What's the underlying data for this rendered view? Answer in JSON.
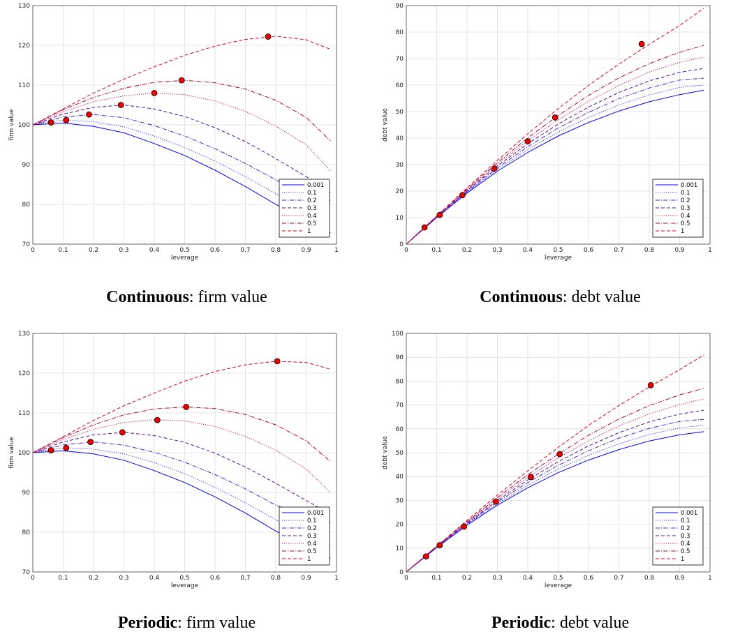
{
  "colors": {
    "curves": [
      "#0000ff",
      "#3333ee",
      "#4422cc",
      "#551199",
      "#bb1155",
      "#aa0033",
      "#dd0022"
    ],
    "marker_fill": "#ee0000",
    "grid": "#dddddd"
  },
  "chart_data": [
    {
      "type": "line",
      "caption_bold": "Continuous",
      "caption_rest": ": firm value",
      "xlabel": "leverage",
      "ylabel": "firm value",
      "xlim": [
        0,
        1
      ],
      "ylim": [
        70,
        130
      ],
      "xticks": [
        "0",
        "0.1",
        "0.2",
        "0.3",
        "0.4",
        "0.5",
        "0.6",
        "0.7",
        "0.8",
        "0.9",
        "1"
      ],
      "yticks": [
        "70",
        "80",
        "90",
        "100",
        "110",
        "120",
        "130"
      ],
      "grid": true,
      "legend_position": "bottom-right",
      "series": [
        {
          "name": "0.001",
          "x": [
            0,
            0.1,
            0.2,
            0.3,
            0.4,
            0.5,
            0.6,
            0.7,
            0.8,
            0.9,
            0.98
          ],
          "y": [
            100,
            100.5,
            99.6,
            98.0,
            95.3,
            92.3,
            88.6,
            84.5,
            80.0,
            76.0,
            72.8
          ],
          "marker": [
            0.06,
            100.6
          ]
        },
        {
          "name": "0.1",
          "x": [
            0,
            0.1,
            0.2,
            0.3,
            0.4,
            0.5,
            0.6,
            0.7,
            0.8,
            0.9,
            0.98
          ],
          "y": [
            100,
            101.2,
            100.8,
            99.5,
            97.2,
            94.3,
            90.9,
            87.0,
            82.7,
            78.5,
            75.4
          ],
          "marker": [
            0.11,
            101.2
          ]
        },
        {
          "name": "0.2",
          "x": [
            0,
            0.1,
            0.2,
            0.3,
            0.4,
            0.5,
            0.6,
            0.7,
            0.8,
            0.9,
            0.98
          ],
          "y": [
            100,
            102.0,
            102.6,
            101.8,
            99.8,
            97.2,
            94.0,
            90.3,
            86.2,
            81.5,
            81.0
          ],
          "marker": [
            0.185,
            102.6
          ]
        },
        {
          "name": "0.3",
          "x": [
            0,
            0.1,
            0.2,
            0.3,
            0.4,
            0.5,
            0.6,
            0.7,
            0.8,
            0.9,
            0.98
          ],
          "y": [
            100,
            102.7,
            104.4,
            105.0,
            104.0,
            102.1,
            99.3,
            95.8,
            91.5,
            87.0,
            83.0
          ],
          "marker": [
            0.29,
            105.0
          ]
        },
        {
          "name": "0.4",
          "x": [
            0,
            0.1,
            0.2,
            0.3,
            0.4,
            0.5,
            0.6,
            0.7,
            0.8,
            0.9,
            0.98
          ],
          "y": [
            100,
            103.3,
            105.8,
            107.3,
            108.0,
            107.6,
            106.0,
            103.4,
            99.7,
            95.0,
            88.5
          ],
          "marker": [
            0.4,
            108.0
          ]
        },
        {
          "name": "0.5",
          "x": [
            0,
            0.1,
            0.2,
            0.3,
            0.4,
            0.5,
            0.6,
            0.7,
            0.8,
            0.9,
            0.98
          ],
          "y": [
            100,
            103.8,
            106.9,
            109.2,
            110.7,
            111.2,
            110.6,
            109.0,
            106.2,
            101.9,
            96.0
          ],
          "marker": [
            0.49,
            111.2
          ]
        },
        {
          "name": "1",
          "x": [
            0,
            0.1,
            0.2,
            0.3,
            0.4,
            0.5,
            0.6,
            0.7,
            0.8,
            0.9,
            0.98
          ],
          "y": [
            100,
            104.0,
            108.0,
            111.5,
            114.6,
            117.5,
            119.8,
            121.5,
            122.3,
            121.4,
            119.0
          ],
          "marker": [
            0.775,
            122.2
          ]
        }
      ]
    },
    {
      "type": "line",
      "caption_bold": "Continuous",
      "caption_rest": ": debt value",
      "xlabel": "leverage",
      "ylabel": "debt value",
      "xlim": [
        0,
        1
      ],
      "ylim": [
        0,
        90
      ],
      "xticks": [
        "0",
        "0.1",
        "0.2",
        "0.3",
        "0.4",
        "0.5",
        "0.6",
        "0.7",
        "0.8",
        "0.9",
        "1"
      ],
      "yticks": [
        "0",
        "10",
        "20",
        "30",
        "40",
        "50",
        "60",
        "70",
        "80",
        "90"
      ],
      "grid": true,
      "legend_position": "bottom-right",
      "series": [
        {
          "name": "0.001",
          "x": [
            0,
            0.1,
            0.2,
            0.3,
            0.4,
            0.5,
            0.6,
            0.7,
            0.8,
            0.9,
            0.98
          ],
          "y": [
            0,
            10.0,
            19.3,
            27.5,
            34.6,
            40.8,
            45.9,
            50.2,
            53.7,
            56.4,
            58.1
          ],
          "marker": [
            0.06,
            6.3
          ]
        },
        {
          "name": "0.1",
          "x": [
            0,
            0.1,
            0.2,
            0.3,
            0.4,
            0.5,
            0.6,
            0.7,
            0.8,
            0.9,
            0.98
          ],
          "y": [
            0,
            10.1,
            19.6,
            28.2,
            35.7,
            42.3,
            47.8,
            52.5,
            56.3,
            59.1,
            60.0
          ],
          "marker": [
            0.11,
            11.0
          ]
        },
        {
          "name": "0.2",
          "x": [
            0,
            0.1,
            0.2,
            0.3,
            0.4,
            0.5,
            0.6,
            0.7,
            0.8,
            0.9,
            0.98
          ],
          "y": [
            0,
            10.2,
            19.9,
            28.8,
            36.8,
            43.8,
            49.7,
            54.9,
            58.9,
            61.9,
            62.6
          ],
          "marker": [
            0.185,
            18.5
          ]
        },
        {
          "name": "0.3",
          "x": [
            0,
            0.1,
            0.2,
            0.3,
            0.4,
            0.5,
            0.6,
            0.7,
            0.8,
            0.9,
            0.98
          ],
          "y": [
            0,
            10.3,
            20.2,
            29.5,
            37.9,
            45.3,
            51.7,
            57.2,
            61.6,
            64.8,
            66.3
          ],
          "marker": [
            0.29,
            28.5
          ]
        },
        {
          "name": "0.4",
          "x": [
            0,
            0.1,
            0.2,
            0.3,
            0.4,
            0.5,
            0.6,
            0.7,
            0.8,
            0.9,
            0.98
          ],
          "y": [
            0,
            10.4,
            20.5,
            30.1,
            39.0,
            46.9,
            53.9,
            59.9,
            64.9,
            68.6,
            70.6
          ],
          "marker": [
            0.4,
            38.8
          ]
        },
        {
          "name": "0.5",
          "x": [
            0,
            0.1,
            0.2,
            0.3,
            0.4,
            0.5,
            0.6,
            0.7,
            0.8,
            0.9,
            0.98
          ],
          "y": [
            0,
            10.5,
            20.8,
            30.7,
            40.1,
            48.5,
            56.1,
            62.7,
            68.1,
            72.4,
            75.0
          ],
          "marker": [
            0.49,
            47.8
          ]
        },
        {
          "name": "1",
          "x": [
            0,
            0.1,
            0.2,
            0.3,
            0.4,
            0.5,
            0.6,
            0.7,
            0.8,
            0.9,
            0.98
          ],
          "y": [
            0,
            10.6,
            21.2,
            31.6,
            41.6,
            51.1,
            59.9,
            67.9,
            75.4,
            82.5,
            89.0
          ],
          "marker": [
            0.775,
            75.5
          ]
        }
      ]
    },
    {
      "type": "line",
      "caption_bold": "Periodic",
      "caption_rest": ": firm value",
      "xlabel": "leverage",
      "ylabel": "firm value",
      "xlim": [
        0,
        1
      ],
      "ylim": [
        70,
        130
      ],
      "xticks": [
        "0",
        "0.1",
        "0.2",
        "0.3",
        "0.4",
        "0.5",
        "0.6",
        "0.7",
        "0.8",
        "0.9",
        "1"
      ],
      "yticks": [
        "70",
        "80",
        "90",
        "100",
        "110",
        "120",
        "130"
      ],
      "grid": true,
      "legend_position": "bottom-right",
      "series": [
        {
          "name": "0.001",
          "x": [
            0,
            0.1,
            0.2,
            0.3,
            0.4,
            0.5,
            0.6,
            0.7,
            0.8,
            0.9,
            0.98
          ],
          "y": [
            100,
            100.5,
            99.7,
            98.1,
            95.5,
            92.5,
            88.9,
            84.8,
            80.3,
            76.4,
            73.5
          ],
          "marker": [
            0.06,
            100.6
          ]
        },
        {
          "name": "0.1",
          "x": [
            0,
            0.1,
            0.2,
            0.3,
            0.4,
            0.5,
            0.6,
            0.7,
            0.8,
            0.9,
            0.98
          ],
          "y": [
            100,
            101.2,
            100.9,
            99.7,
            97.5,
            94.7,
            91.3,
            87.4,
            83.1,
            79.2,
            76.5
          ],
          "marker": [
            0.11,
            101.2
          ]
        },
        {
          "name": "0.2",
          "x": [
            0,
            0.1,
            0.2,
            0.3,
            0.4,
            0.5,
            0.6,
            0.7,
            0.8,
            0.9,
            0.98
          ],
          "y": [
            100,
            102.0,
            102.7,
            101.9,
            100.1,
            97.6,
            94.5,
            90.9,
            86.8,
            84.0,
            82.5
          ],
          "marker": [
            0.19,
            102.7
          ]
        },
        {
          "name": "0.3",
          "x": [
            0,
            0.1,
            0.2,
            0.3,
            0.4,
            0.5,
            0.6,
            0.7,
            0.8,
            0.9,
            0.98
          ],
          "y": [
            100,
            102.7,
            104.5,
            105.1,
            104.3,
            102.6,
            99.9,
            96.4,
            92.3,
            88.0,
            84.5
          ],
          "marker": [
            0.295,
            105.1
          ]
        },
        {
          "name": "0.4",
          "x": [
            0,
            0.1,
            0.2,
            0.3,
            0.4,
            0.5,
            0.6,
            0.7,
            0.8,
            0.9,
            0.98
          ],
          "y": [
            100,
            103.3,
            105.9,
            107.6,
            108.3,
            108.0,
            106.6,
            104.1,
            100.6,
            95.9,
            90.0
          ],
          "marker": [
            0.41,
            108.2
          ]
        },
        {
          "name": "0.5",
          "x": [
            0,
            0.1,
            0.2,
            0.3,
            0.4,
            0.5,
            0.6,
            0.7,
            0.8,
            0.9,
            0.98
          ],
          "y": [
            100,
            103.8,
            107.0,
            109.5,
            111.0,
            111.5,
            111.1,
            109.6,
            107.0,
            103.0,
            97.8
          ],
          "marker": [
            0.505,
            111.5
          ]
        },
        {
          "name": "1",
          "x": [
            0,
            0.1,
            0.2,
            0.3,
            0.4,
            0.5,
            0.6,
            0.7,
            0.8,
            0.9,
            0.98
          ],
          "y": [
            100,
            104.0,
            108.1,
            111.8,
            115.0,
            118.0,
            120.4,
            122.1,
            123.0,
            122.7,
            121.0
          ],
          "marker": [
            0.805,
            123.0
          ]
        }
      ]
    },
    {
      "type": "line",
      "caption_bold": "Periodic",
      "caption_rest": ": debt value",
      "xlabel": "leverage",
      "ylabel": "debt value",
      "xlim": [
        0,
        1
      ],
      "ylim": [
        0,
        100
      ],
      "xticks": [
        "0",
        "0.1",
        "0.2",
        "0.3",
        "0.4",
        "0.5",
        "0.6",
        "0.7",
        "0.8",
        "0.9",
        "1"
      ],
      "yticks": [
        "0",
        "10",
        "20",
        "30",
        "40",
        "50",
        "60",
        "70",
        "80",
        "90",
        "100"
      ],
      "grid": true,
      "legend_position": "bottom-right",
      "series": [
        {
          "name": "0.001",
          "x": [
            0,
            0.1,
            0.2,
            0.3,
            0.4,
            0.5,
            0.6,
            0.7,
            0.8,
            0.9,
            0.98
          ],
          "y": [
            0,
            10.2,
            19.6,
            28.0,
            35.3,
            41.6,
            46.9,
            51.3,
            54.9,
            57.5,
            58.8
          ],
          "marker": [
            0.065,
            6.5
          ]
        },
        {
          "name": "0.1",
          "x": [
            0,
            0.1,
            0.2,
            0.3,
            0.4,
            0.5,
            0.6,
            0.7,
            0.8,
            0.9,
            0.98
          ],
          "y": [
            0,
            10.3,
            19.9,
            28.6,
            36.4,
            43.1,
            48.9,
            53.7,
            57.6,
            60.4,
            61.5
          ],
          "marker": [
            0.11,
            11.2
          ]
        },
        {
          "name": "0.2",
          "x": [
            0,
            0.1,
            0.2,
            0.3,
            0.4,
            0.5,
            0.6,
            0.7,
            0.8,
            0.9,
            0.98
          ],
          "y": [
            0,
            10.4,
            20.2,
            29.3,
            37.5,
            44.7,
            50.8,
            56.1,
            60.2,
            63.1,
            64.0
          ],
          "marker": [
            0.19,
            19.0
          ]
        },
        {
          "name": "0.3",
          "x": [
            0,
            0.1,
            0.2,
            0.3,
            0.4,
            0.5,
            0.6,
            0.7,
            0.8,
            0.9,
            0.98
          ],
          "y": [
            0,
            10.5,
            20.5,
            29.9,
            38.6,
            46.2,
            52.8,
            58.4,
            62.9,
            66.2,
            67.8
          ],
          "marker": [
            0.295,
            29.5
          ]
        },
        {
          "name": "0.4",
          "x": [
            0,
            0.1,
            0.2,
            0.3,
            0.4,
            0.5,
            0.6,
            0.7,
            0.8,
            0.9,
            0.98
          ],
          "y": [
            0,
            10.6,
            20.8,
            30.6,
            39.7,
            47.8,
            55.0,
            61.2,
            66.3,
            70.2,
            72.5
          ],
          "marker": [
            0.41,
            39.8
          ]
        },
        {
          "name": "0.5",
          "x": [
            0,
            0.1,
            0.2,
            0.3,
            0.4,
            0.5,
            0.6,
            0.7,
            0.8,
            0.9,
            0.98
          ],
          "y": [
            0,
            10.7,
            21.1,
            31.2,
            40.8,
            49.4,
            57.3,
            64.1,
            69.7,
            74.2,
            77.0
          ],
          "marker": [
            0.505,
            49.4
          ]
        },
        {
          "name": "1",
          "x": [
            0,
            0.1,
            0.2,
            0.3,
            0.4,
            0.5,
            0.6,
            0.7,
            0.8,
            0.9,
            0.98
          ],
          "y": [
            0,
            10.8,
            21.6,
            32.2,
            42.4,
            52.2,
            61.4,
            69.8,
            77.5,
            84.8,
            91.0
          ],
          "marker": [
            0.805,
            78.3
          ]
        }
      ]
    }
  ]
}
